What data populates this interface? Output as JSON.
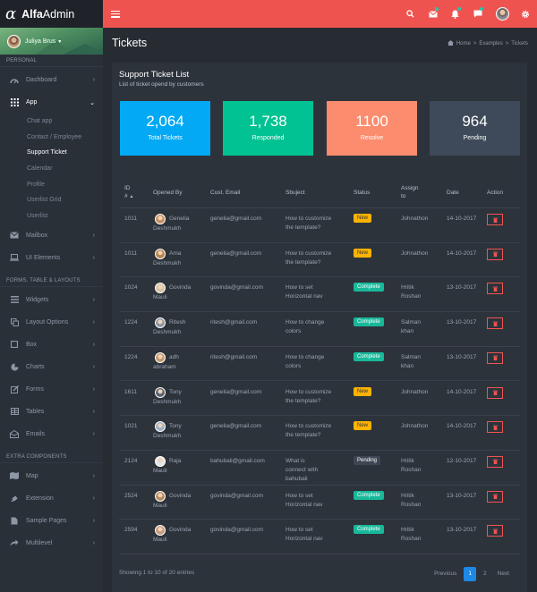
{
  "app": {
    "logo_symbol": "α",
    "brand_bold": "Alfa",
    "brand_rest": "Admin"
  },
  "topbar": {
    "icons": [
      "menu-icon",
      "search-icon",
      "mail-icon",
      "bell-icon",
      "chat-icon",
      "avatar",
      "gear-icon"
    ],
    "accent": "#ef5350"
  },
  "sidebar": {
    "user": "Juliya Brus",
    "sections": {
      "personal": "PERSONAL",
      "forms": "FORMS, TABLE & LAYOUTS",
      "extra": "EXTRA COMPONENTS"
    },
    "dashboard": "Dashboard",
    "app": "App",
    "app_items": [
      "Chat app",
      "Contact / Employee",
      "Support Ticket",
      "Calendar",
      "Profile",
      "Userlist Grid",
      "Userlist"
    ],
    "mailbox": "Mailbox",
    "ui_elements": "UI Elements",
    "widgets": "Widgets",
    "layout_options": "Layout Options",
    "box": "Box",
    "charts": "Charts",
    "forms_item": "Forms",
    "tables": "Tables",
    "emails": "Emails",
    "map": "Map",
    "extension": "Extension",
    "sample_pages": "Sample Pages",
    "multilevel": "Multilevel"
  },
  "page": {
    "title": "Tickets",
    "breadcrumb": [
      "Home",
      "Examples",
      "Tickets"
    ],
    "sep": ">"
  },
  "card": {
    "title": "Support Ticket List",
    "subtitle": "List of ticket opend by customers"
  },
  "stats": [
    {
      "value": "2,064",
      "label": "Total Tickets",
      "color": "#03a9f4"
    },
    {
      "value": "1,738",
      "label": "Responded",
      "color": "#00c292"
    },
    {
      "value": "1100",
      "label": "Resolve",
      "color": "#fb8c6e"
    },
    {
      "value": "964",
      "label": "Pending",
      "color": "#3e4a59"
    }
  ],
  "table": {
    "headers": {
      "id1": "ID",
      "id2": "#",
      "opened_by": "Opened By",
      "email": "Cust. Email",
      "subject": "Sbuject",
      "status": "Status",
      "assign1": "Assign",
      "assign2": "to",
      "date": "Date",
      "action": "Action"
    },
    "rows": [
      {
        "id": "1011",
        "name1": "Genelia",
        "name2": "Deshmukh",
        "email": "genelia@gmail.com",
        "subj1": "How to customize",
        "subj2": "the template?",
        "subj3": "",
        "status": "New",
        "assign1": "Johnathon",
        "assign2": "",
        "date": "14-10-2017"
      },
      {
        "id": "1011",
        "name1": "Ama",
        "name2": "Deshmukh",
        "email": "genelia@gmail.com",
        "subj1": "How to customize",
        "subj2": "the template?",
        "subj3": "",
        "status": "New",
        "assign1": "Johnathon",
        "assign2": "",
        "date": "14-10-2017"
      },
      {
        "id": "1024",
        "name1": "Govinda",
        "name2": "Mauli",
        "email": "govinda@gmail.com",
        "subj1": "How to set",
        "subj2": "Horizontal nav",
        "subj3": "",
        "status": "Complete",
        "assign1": "Hritik",
        "assign2": "Roshan",
        "date": "13-10-2017"
      },
      {
        "id": "1224",
        "name1": "Ritesh",
        "name2": "Deshmukh",
        "email": "ritesh@gmail.com",
        "subj1": "How to change",
        "subj2": "colors",
        "subj3": "",
        "status": "Complete",
        "assign1": "Salman",
        "assign2": "khan",
        "date": "13-10-2017"
      },
      {
        "id": "1224",
        "name1": "adh",
        "name2": "abraham",
        "email": "ritesh@gmail.com",
        "subj1": "How to change",
        "subj2": "colors",
        "subj3": "",
        "status": "Complete",
        "assign1": "Salman",
        "assign2": "khan",
        "date": "13-10-2017"
      },
      {
        "id": "1611",
        "name1": "Tony",
        "name2": "Deshmukh",
        "email": "genelia@gmail.com",
        "subj1": "How to customize",
        "subj2": "the template?",
        "subj3": "",
        "status": "New",
        "assign1": "Johnathon",
        "assign2": "",
        "date": "14-10-2017"
      },
      {
        "id": "1021",
        "name1": "Tony",
        "name2": "Deshmukh",
        "email": "genelia@gmail.com",
        "subj1": "How to customize",
        "subj2": "the template?",
        "subj3": "",
        "status": "New",
        "assign1": "Johnathon",
        "assign2": "",
        "date": "14-10-2017"
      },
      {
        "id": "2124",
        "name1": "Raja",
        "name2": "Mauli",
        "email": "bahubali@gmail.com",
        "subj1": "What is",
        "subj2": "connect with",
        "subj3": "bahubali",
        "status": "Pending",
        "assign1": "Hritik",
        "assign2": "Roshan",
        "date": "12-10-2017"
      },
      {
        "id": "2524",
        "name1": "Govinda",
        "name2": "Mauli",
        "email": "govinda@gmail.com",
        "subj1": "How to set",
        "subj2": "Horizontal nav",
        "subj3": "",
        "status": "Complete",
        "assign1": "Hritik",
        "assign2": "Roshan",
        "date": "13-10-2017"
      },
      {
        "id": "2594",
        "name1": "Govinda",
        "name2": "Mauli",
        "email": "govinda@gmail.com",
        "subj1": "How to set",
        "subj2": "Horizontal nav",
        "subj3": "",
        "status": "Complete",
        "assign1": "Hritik",
        "assign2": "Roshan",
        "date": "13-10-2017"
      }
    ],
    "footer": "Showing 1 to 10 of 20 entries",
    "pagination": {
      "previous": "Previous",
      "page1": "1",
      "page2": "2",
      "next": "Next"
    }
  }
}
